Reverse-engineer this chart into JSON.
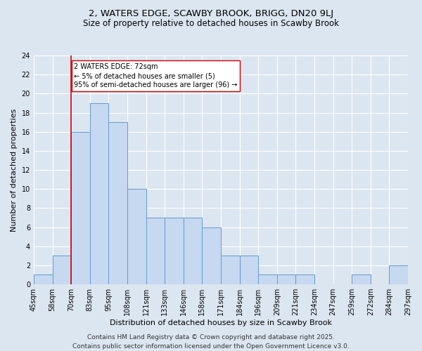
{
  "title_line1": "2, WATERS EDGE, SCAWBY BROOK, BRIGG, DN20 9LJ",
  "title_line2": "Size of property relative to detached houses in Scawby Brook",
  "xlabel": "Distribution of detached houses by size in Scawby Brook",
  "ylabel": "Number of detached properties",
  "bar_values": [
    1,
    3,
    16,
    19,
    17,
    10,
    7,
    7,
    7,
    6,
    3,
    3,
    1,
    1,
    1,
    0,
    0,
    1,
    0,
    2
  ],
  "bin_labels": [
    "45sqm",
    "58sqm",
    "70sqm",
    "83sqm",
    "95sqm",
    "108sqm",
    "121sqm",
    "133sqm",
    "146sqm",
    "158sqm",
    "171sqm",
    "184sqm",
    "196sqm",
    "209sqm",
    "221sqm",
    "234sqm",
    "247sqm",
    "259sqm",
    "272sqm",
    "284sqm",
    "297sqm"
  ],
  "bar_color": "#c6d9f0",
  "bar_edge_color": "#6699cc",
  "bg_color": "#dce6f1",
  "grid_color": "#ffffff",
  "vline_color": "#cc0000",
  "vline_x_index": 2,
  "annotation_text": "2 WATERS EDGE: 72sqm\n← 5% of detached houses are smaller (5)\n95% of semi-detached houses are larger (96) →",
  "annotation_box_color": "#ffffff",
  "annotation_box_edge": "#cc0000",
  "ylim": [
    0,
    24
  ],
  "yticks": [
    0,
    2,
    4,
    6,
    8,
    10,
    12,
    14,
    16,
    18,
    20,
    22,
    24
  ],
  "footer": "Contains HM Land Registry data © Crown copyright and database right 2025.\nContains public sector information licensed under the Open Government Licence v3.0.",
  "title_fontsize": 9.5,
  "subtitle_fontsize": 8.5,
  "axis_label_fontsize": 8,
  "tick_fontsize": 7,
  "annotation_fontsize": 7,
  "footer_fontsize": 6.5
}
